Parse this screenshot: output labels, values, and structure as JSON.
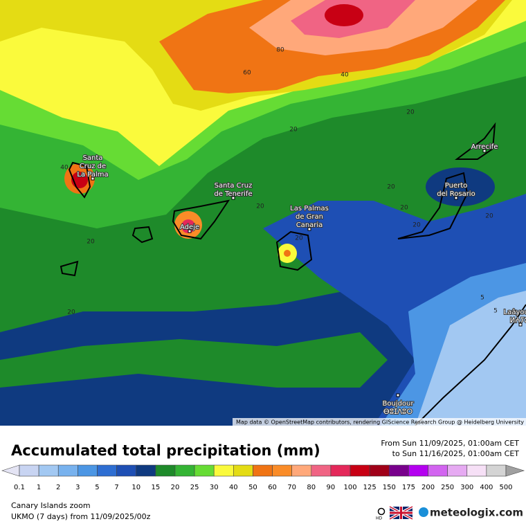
{
  "map": {
    "attribution": "Map data © OpenStreetMap contributors, rendering GIScience Research Group @ Heidelberg University",
    "places": [
      {
        "lines": [
          "Santa",
          "Cruz de",
          "La Palma"
        ]
      },
      {
        "lines": [
          "Santa Cruz",
          "de Tenerife"
        ]
      },
      {
        "lines": [
          "Adeje"
        ]
      },
      {
        "lines": [
          "Las Palmas",
          "de Gran",
          "Canaria"
        ]
      },
      {
        "lines": [
          "Puerto",
          "del Rosario"
        ]
      },
      {
        "lines": [
          "Arrecife"
        ]
      },
      {
        "lines": [
          "Laâyoune",
          "ⵍⵄⵢⵓⵏ"
        ]
      },
      {
        "lines": [
          "Boujdour",
          "ⴱⵓⵊⴷⵓⵔ"
        ]
      }
    ],
    "contour_labels": [
      "80",
      "60",
      "40",
      "20",
      "20",
      "40",
      "20",
      "20",
      "20",
      "20",
      "20",
      "20",
      "20",
      "20",
      "5",
      "5"
    ]
  },
  "legend": {
    "title": "Accumulated total precipitation (mm)",
    "period_from": "From Sun 11/09/2025, 01:00am CET",
    "period_to": "to Sun 11/16/2025, 01:00am CET",
    "below_color": "#e4e4f4",
    "levels": [
      {
        "label": "0.1",
        "color": "#c8d4f2"
      },
      {
        "label": "1",
        "color": "#a2c8f2"
      },
      {
        "label": "2",
        "color": "#78b2ee"
      },
      {
        "label": "3",
        "color": "#4c96e4"
      },
      {
        "label": "5",
        "color": "#2e6ed2"
      },
      {
        "label": "7",
        "color": "#1e4fb4"
      },
      {
        "label": "10",
        "color": "#0f3a80"
      },
      {
        "label": "15",
        "color": "#1e8a2a"
      },
      {
        "label": "20",
        "color": "#34b434"
      },
      {
        "label": "25",
        "color": "#66dc34"
      },
      {
        "label": "30",
        "color": "#fafa3c"
      },
      {
        "label": "40",
        "color": "#e4dc14"
      },
      {
        "label": "50",
        "color": "#f07414"
      },
      {
        "label": "60",
        "color": "#fa8c28"
      },
      {
        "label": "70",
        "color": "#ffa87a"
      },
      {
        "label": "80",
        "color": "#f06484"
      },
      {
        "label": "90",
        "color": "#e4285a"
      },
      {
        "label": "100",
        "color": "#c80014"
      },
      {
        "label": "125",
        "color": "#a00018"
      },
      {
        "label": "150",
        "color": "#78008c"
      },
      {
        "label": "175",
        "color": "#b400f0"
      },
      {
        "label": "200",
        "color": "#d264f0"
      },
      {
        "label": "250",
        "color": "#e6aaf2"
      },
      {
        "label": "300",
        "color": "#f6e0f6"
      },
      {
        "label": "400",
        "color": "#d4d4d4"
      },
      {
        "label": "500",
        "color": "#a0a0a0"
      }
    ]
  },
  "footer": {
    "region": "Canary Islands zoom",
    "model": "UKMO (7 days) from  11/09/2025/00z",
    "hd": "HD",
    "brand": "meteologix.com"
  }
}
